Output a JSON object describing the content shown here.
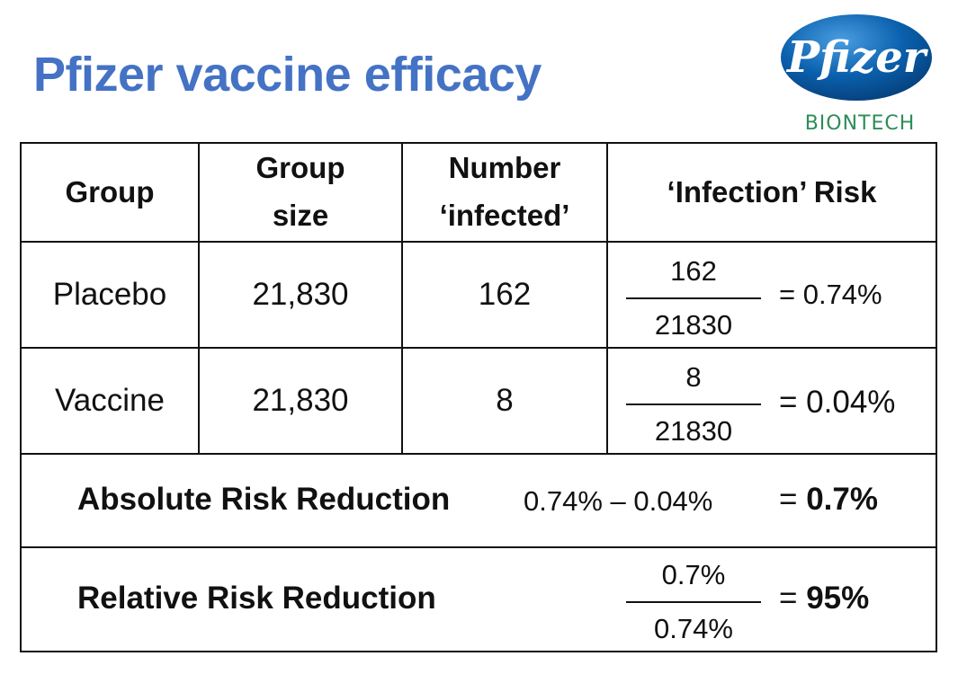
{
  "title": "Pfizer vaccine efficacy",
  "logo": {
    "brand": "Pfizer",
    "subbrand": "BIONTECH",
    "oval_color": "#0a60ad",
    "subbrand_color": "#2c8d58"
  },
  "table": {
    "headers": {
      "group": "Group",
      "group_size": [
        "Group",
        "size"
      ],
      "number_infected": [
        "Number",
        "‘infected’"
      ],
      "infection_risk": "‘Infection’ Risk"
    },
    "rows": [
      {
        "group": "Placebo",
        "size": "21,830",
        "infected": "162",
        "numerator": "162",
        "denominator": "21830",
        "result": "= 0.74%"
      },
      {
        "group": "Vaccine",
        "size": "21,830",
        "infected": "8",
        "numerator": "8",
        "denominator": "21830",
        "result": "= 0.04%"
      }
    ],
    "absolute": {
      "label": "Absolute Risk Reduction",
      "expression": "0.74% – 0.04%",
      "eq_sign": "=",
      "result": "0.7%"
    },
    "relative": {
      "label": "Relative Risk Reduction",
      "numerator": "0.7%",
      "denominator": "0.74%",
      "eq_sign": "=",
      "result": "95%"
    }
  }
}
